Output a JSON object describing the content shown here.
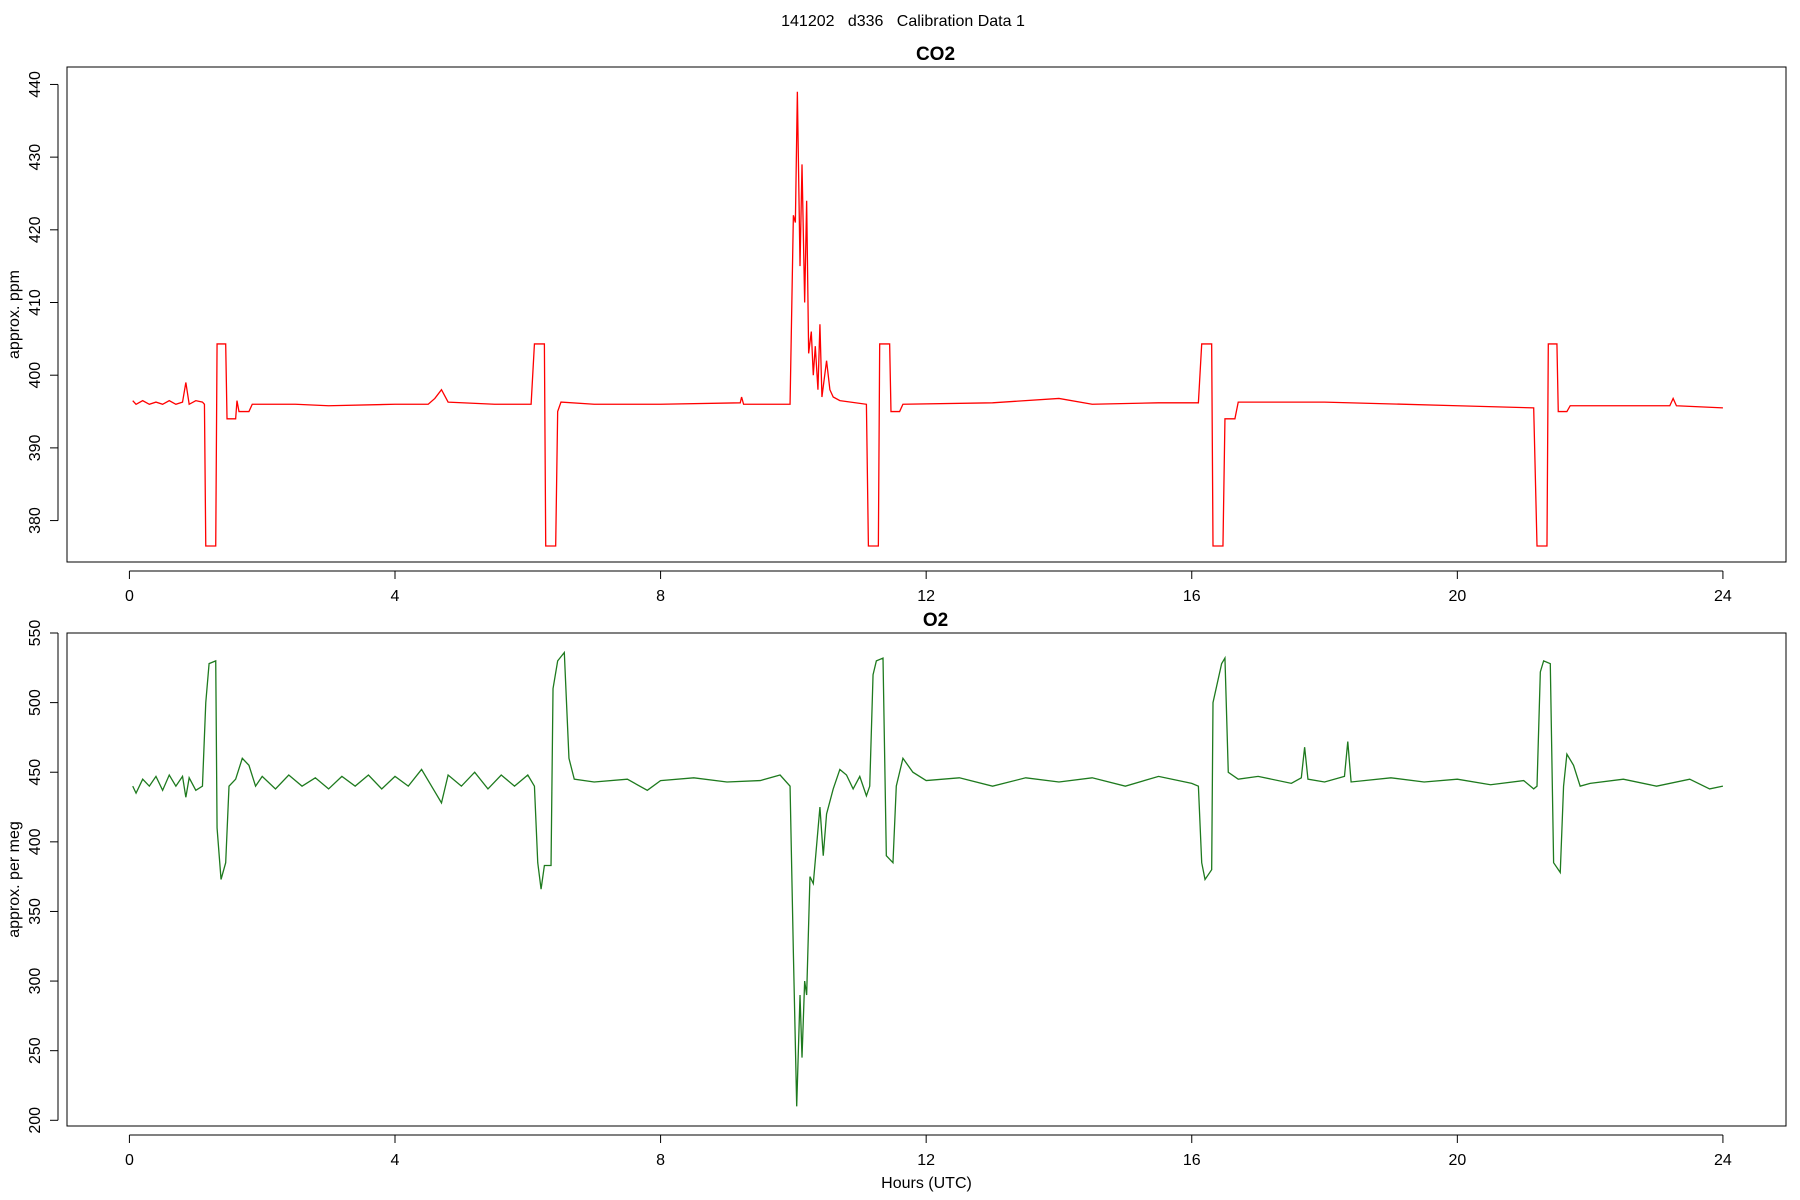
{
  "title": "141202   d336   Calibration Data 1",
  "chart_data": [
    {
      "type": "line",
      "title": "CO2",
      "y_label": "approx. ppm",
      "xlim": [
        -0.94,
        24.95
      ],
      "xticks": [
        0,
        4,
        8,
        12,
        16,
        20,
        24
      ],
      "ylim": [
        374.3,
        442.4
      ],
      "yticks": [
        380,
        390,
        400,
        410,
        420,
        430,
        440
      ],
      "series": [
        {
          "name": "CO2",
          "color": "#ff0000",
          "x": [
            0.05,
            0.1,
            0.2,
            0.3,
            0.4,
            0.5,
            0.6,
            0.7,
            0.8,
            0.85,
            0.9,
            1.0,
            1.1,
            1.13,
            1.15,
            1.3,
            1.32,
            1.45,
            1.47,
            1.6,
            1.62,
            1.65,
            1.8,
            1.85,
            2.5,
            3,
            4,
            4.5,
            4.6,
            4.7,
            4.8,
            5.5,
            6.05,
            6.1,
            6.25,
            6.27,
            6.42,
            6.45,
            6.5,
            7,
            8,
            9.2,
            9.22,
            9.25,
            9.95,
            10.0,
            10.03,
            10.06,
            10.1,
            10.13,
            10.17,
            10.2,
            10.23,
            10.27,
            10.3,
            10.33,
            10.37,
            10.4,
            10.43,
            10.5,
            10.55,
            10.6,
            10.7,
            11.1,
            11.13,
            11.28,
            11.3,
            11.45,
            11.47,
            11.6,
            11.65,
            13,
            14,
            14.5,
            15.5,
            16.1,
            16.15,
            16.3,
            16.32,
            16.47,
            16.5,
            16.65,
            16.7,
            18,
            20,
            21.15,
            21.2,
            21.35,
            21.37,
            21.5,
            21.52,
            21.65,
            21.7,
            23.2,
            23.25,
            23.3,
            24
          ],
          "values": [
            396.5,
            396,
            396.5,
            396,
            396.3,
            396,
            396.5,
            396,
            396.3,
            399,
            396,
            396.5,
            396.3,
            396,
            376.5,
            376.5,
            404.3,
            404.3,
            394,
            394,
            396.5,
            395,
            395,
            396,
            396,
            395.8,
            396,
            396,
            396.8,
            398,
            396.3,
            396,
            396,
            404.3,
            404.3,
            376.5,
            376.5,
            395,
            396.3,
            396,
            396,
            396.2,
            397,
            396,
            396,
            422,
            421,
            439,
            415,
            429,
            410,
            424,
            403,
            406,
            400,
            404,
            398,
            407,
            397,
            402,
            398,
            397,
            396.5,
            396,
            376.5,
            376.5,
            404.3,
            404.3,
            395,
            395,
            396,
            396.2,
            396.8,
            396,
            396.2,
            396.2,
            404.3,
            404.3,
            376.5,
            376.5,
            394,
            394,
            396.3,
            396.3,
            395.8,
            395.5,
            376.5,
            376.5,
            404.3,
            404.3,
            395,
            395,
            395.8,
            395.8,
            396.8,
            395.8,
            395.5
          ]
        }
      ]
    },
    {
      "type": "line",
      "title": "O2",
      "y_label": "approx. per meg",
      "x_label": "Hours (UTC)",
      "xlim": [
        -0.94,
        24.95
      ],
      "xticks": [
        0,
        4,
        8,
        12,
        16,
        20,
        24
      ],
      "ylim": [
        195.9,
        550
      ],
      "yticks": [
        200,
        250,
        300,
        350,
        400,
        450,
        500,
        550
      ],
      "series": [
        {
          "name": "O2",
          "color": "#1e7a1e",
          "x": [
            0.05,
            0.1,
            0.2,
            0.3,
            0.4,
            0.5,
            0.6,
            0.7,
            0.8,
            0.85,
            0.9,
            1.0,
            1.1,
            1.15,
            1.2,
            1.3,
            1.32,
            1.38,
            1.45,
            1.5,
            1.6,
            1.7,
            1.8,
            1.9,
            2.0,
            2.2,
            2.4,
            2.6,
            2.8,
            3.0,
            3.2,
            3.4,
            3.6,
            3.8,
            4.0,
            4.2,
            4.4,
            4.6,
            4.7,
            4.8,
            5.0,
            5.2,
            5.4,
            5.6,
            5.8,
            6.0,
            6.1,
            6.15,
            6.2,
            6.25,
            6.35,
            6.38,
            6.45,
            6.55,
            6.62,
            6.7,
            7.0,
            7.5,
            7.8,
            8,
            8.5,
            9,
            9.5,
            9.8,
            9.95,
            10.0,
            10.05,
            10.1,
            10.13,
            10.17,
            10.2,
            10.25,
            10.3,
            10.4,
            10.45,
            10.5,
            10.6,
            10.7,
            10.8,
            10.9,
            11.0,
            11.1,
            11.15,
            11.2,
            11.25,
            11.35,
            11.4,
            11.5,
            11.55,
            11.65,
            11.8,
            12,
            12.5,
            13,
            13.5,
            14,
            14.5,
            15,
            15.5,
            16.0,
            16.1,
            16.15,
            16.2,
            16.3,
            16.32,
            16.45,
            16.5,
            16.55,
            16.7,
            17,
            17.5,
            17.65,
            17.7,
            17.75,
            18,
            18.3,
            18.35,
            18.4,
            19,
            19.5,
            20,
            20.5,
            21,
            21.15,
            21.2,
            21.25,
            21.3,
            21.4,
            21.45,
            21.55,
            21.6,
            21.65,
            21.75,
            21.85,
            22,
            22.5,
            23,
            23.5,
            23.8,
            24
          ],
          "values": [
            440,
            435,
            445,
            440,
            447,
            437,
            448,
            440,
            447,
            432,
            446,
            437,
            440,
            500,
            528,
            530,
            410,
            373,
            385,
            440,
            445,
            460,
            455,
            440,
            447,
            438,
            448,
            440,
            446,
            438,
            447,
            440,
            448,
            438,
            447,
            440,
            452,
            436,
            428,
            448,
            440,
            450,
            438,
            448,
            440,
            448,
            440,
            385,
            366,
            383,
            383,
            510,
            530,
            536,
            460,
            445,
            443,
            445,
            437,
            444,
            446,
            443,
            444,
            448,
            440,
            320,
            210,
            290,
            245,
            300,
            290,
            375,
            370,
            425,
            390,
            420,
            438,
            452,
            448,
            438,
            447,
            433,
            440,
            520,
            530,
            532,
            390,
            385,
            440,
            460,
            450,
            444,
            446,
            440,
            446,
            443,
            446,
            440,
            447,
            442,
            440,
            385,
            373,
            380,
            500,
            528,
            532,
            450,
            445,
            447,
            442,
            446,
            468,
            445,
            443,
            447,
            472,
            443,
            446,
            443,
            445,
            441,
            444,
            438,
            440,
            522,
            530,
            528,
            385,
            378,
            440,
            463,
            455,
            440,
            442,
            445,
            440,
            445,
            438,
            440
          ]
        }
      ]
    }
  ]
}
